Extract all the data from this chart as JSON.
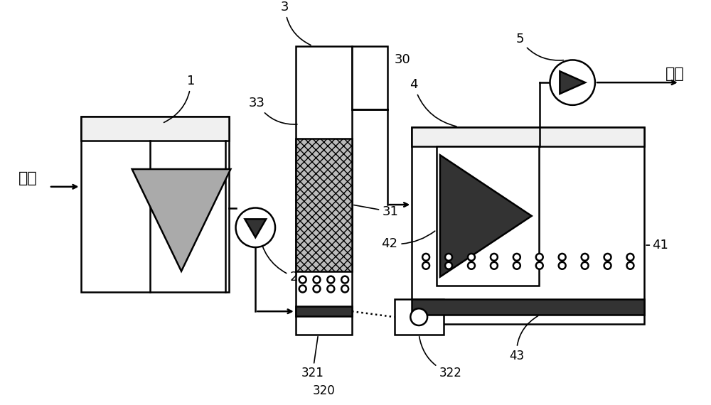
{
  "bg_color": "#ffffff",
  "black": "#000000",
  "gray": "#aaaaaa",
  "dark": "#333333",
  "labels": {
    "jinshui": "进水",
    "chushui": "出水",
    "n1": "1",
    "n2": "2",
    "n3": "3",
    "n4": "4",
    "n5": "5",
    "n30": "30",
    "n31": "31",
    "n33": "33",
    "n41": "41",
    "n42": "42",
    "n43": "43",
    "n320": "320",
    "n321": "321",
    "n322": "322"
  }
}
